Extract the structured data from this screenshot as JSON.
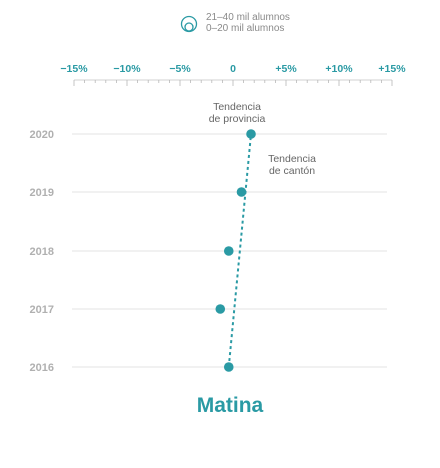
{
  "title": "Matina",
  "legend": {
    "items": [
      "21–40 mil alumnos",
      "0–20 mil alumnos"
    ]
  },
  "colors": {
    "accent": "#2a9aa4",
    "grid": "#e3e3e3",
    "year_label": "#b0b0b0",
    "annotation": "#666666"
  },
  "annotations": {
    "province_trend": [
      "Tendencia",
      "de provincia"
    ],
    "canton_trend": [
      "Tendencia",
      "de cantón"
    ]
  },
  "chart_data": {
    "type": "scatter",
    "x_ticks": [
      "−15%",
      "−10%",
      "−5%",
      "0",
      "+5%",
      "+10%",
      "+15%"
    ],
    "x_tick_values": [
      -15,
      -10,
      -5,
      0,
      5,
      10,
      15
    ],
    "xlim": [
      -15,
      15
    ],
    "years": [
      "2020",
      "2019",
      "2018",
      "2017",
      "2016"
    ],
    "points": [
      {
        "year": "2020",
        "x": 1.7
      },
      {
        "year": "2019",
        "x": 0.8
      },
      {
        "year": "2018",
        "x": -0.4
      },
      {
        "year": "2017",
        "x": -1.2
      },
      {
        "year": "2016",
        "x": -0.4
      }
    ],
    "trend_line": {
      "start": {
        "year": "2016",
        "x": -0.4
      },
      "end": {
        "year": "2020",
        "x": 1.7
      }
    }
  }
}
